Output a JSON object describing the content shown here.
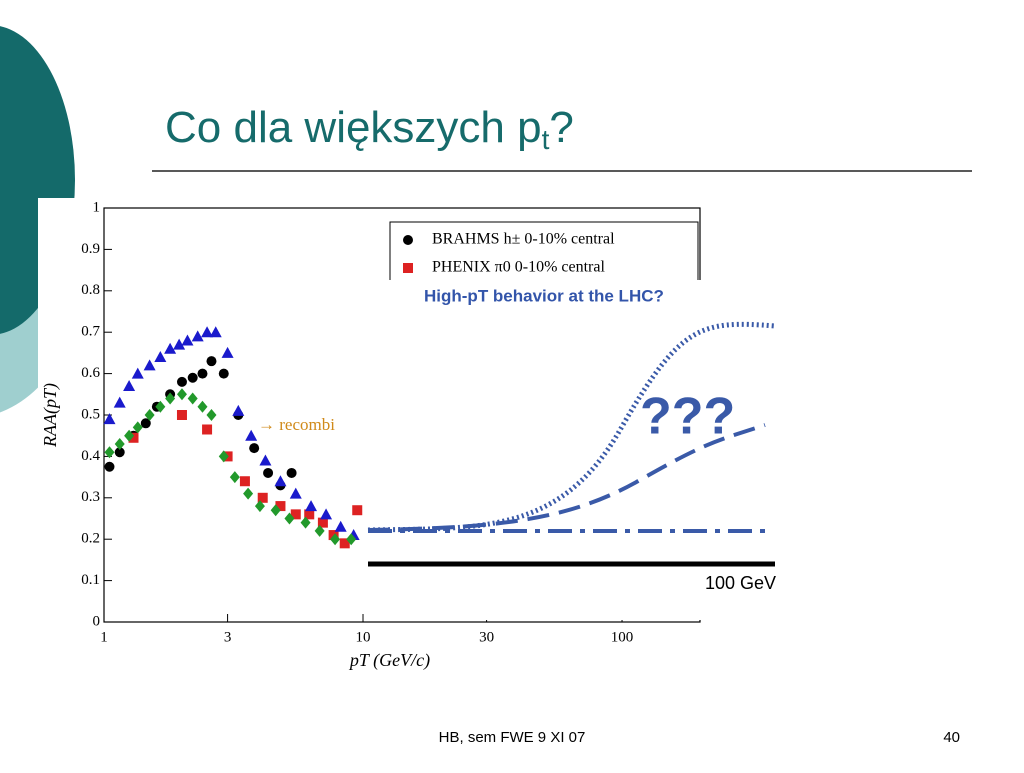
{
  "slide": {
    "title": "Co dla większych p",
    "title_sub": "t",
    "title_end": "?",
    "footer": "HB, sem FWE 9 XI 07",
    "page": "40"
  },
  "inset": {
    "title": "High-pT behavior at the LHC?",
    "question": "???",
    "label": "100 GeV"
  },
  "chart_data": {
    "type": "scatter",
    "xlabel": "pT (GeV/c)",
    "ylabel": "RAA(pT)",
    "annotation": "→ recombi",
    "xlim": [
      1,
      200
    ],
    "xscale": "log",
    "xticks": [
      1,
      3,
      10,
      30,
      100
    ],
    "ylim": [
      0,
      1
    ],
    "yticks": [
      0,
      0.1,
      0.2,
      0.3,
      0.4,
      0.5,
      0.6,
      0.7,
      0.8,
      0.9,
      1
    ],
    "legend": "upper right",
    "series": [
      {
        "name": "BRAHMS h± 0-10% central",
        "color": "#000000",
        "marker": "circle",
        "x": [
          1.05,
          1.15,
          1.3,
          1.45,
          1.6,
          1.8,
          2.0,
          2.2,
          2.4,
          2.6,
          2.9,
          3.3,
          3.8,
          4.3,
          4.8,
          5.3
        ],
        "values": [
          0.375,
          0.41,
          0.45,
          0.48,
          0.52,
          0.55,
          0.58,
          0.59,
          0.6,
          0.63,
          0.6,
          0.5,
          0.42,
          0.36,
          0.33,
          0.36
        ]
      },
      {
        "name": "PHENIX π0 0-10% central",
        "color": "#dd2222",
        "marker": "square",
        "x": [
          1.3,
          2.0,
          2.5,
          3.0,
          3.5,
          4.1,
          4.8,
          5.5,
          6.2,
          7.0,
          7.7,
          8.5,
          9.5
        ],
        "values": [
          0.445,
          0.5,
          0.465,
          0.4,
          0.34,
          0.3,
          0.28,
          0.26,
          0.26,
          0.24,
          0.21,
          0.19,
          0.27
        ]
      },
      {
        "color": "#1a1acc",
        "marker": "triangle",
        "x": [
          1.05,
          1.15,
          1.25,
          1.35,
          1.5,
          1.65,
          1.8,
          1.95,
          2.1,
          2.3,
          2.5,
          2.7,
          3.0,
          3.3,
          3.7,
          4.2,
          4.8,
          5.5,
          6.3,
          7.2,
          8.2,
          9.2
        ],
        "values": [
          0.49,
          0.53,
          0.57,
          0.6,
          0.62,
          0.64,
          0.66,
          0.67,
          0.68,
          0.69,
          0.7,
          0.7,
          0.65,
          0.51,
          0.45,
          0.39,
          0.34,
          0.31,
          0.28,
          0.26,
          0.23,
          0.21
        ]
      },
      {
        "color": "#22992b",
        "marker": "diamond",
        "x": [
          1.05,
          1.15,
          1.25,
          1.35,
          1.5,
          1.65,
          1.8,
          2.0,
          2.2,
          2.4,
          2.6,
          2.9,
          3.2,
          3.6,
          4.0,
          4.6,
          5.2,
          6.0,
          6.8,
          7.8,
          9.0
        ],
        "values": [
          0.41,
          0.43,
          0.45,
          0.47,
          0.5,
          0.52,
          0.54,
          0.55,
          0.54,
          0.52,
          0.5,
          0.4,
          0.35,
          0.31,
          0.28,
          0.27,
          0.25,
          0.24,
          0.22,
          0.2,
          0.2
        ]
      }
    ]
  }
}
